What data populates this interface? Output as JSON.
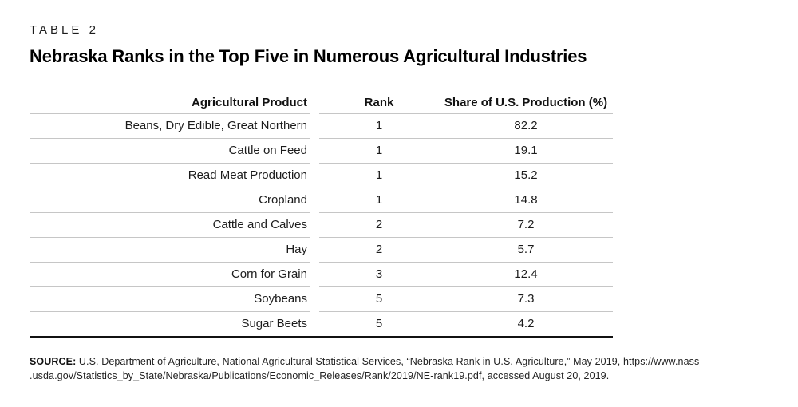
{
  "page": {
    "kicker": "TABLE 2",
    "title": "Nebraska Ranks in the Top Five in Numerous Agricultural Industries"
  },
  "table": {
    "columns": [
      "Agricultural Product",
      "Rank",
      "Share of U.S. Production (%)"
    ],
    "rows": [
      {
        "product": "Beans, Dry Edible, Great Northern",
        "rank": "1",
        "share": "82.2"
      },
      {
        "product": "Cattle on Feed",
        "rank": "1",
        "share": "19.1"
      },
      {
        "product": "Read Meat Production",
        "rank": "1",
        "share": "15.2"
      },
      {
        "product": "Cropland",
        "rank": "1",
        "share": "14.8"
      },
      {
        "product": "Cattle and Calves",
        "rank": "2",
        "share": "7.2"
      },
      {
        "product": "Hay",
        "rank": "2",
        "share": "5.7"
      },
      {
        "product": "Corn for Grain",
        "rank": "3",
        "share": "12.4"
      },
      {
        "product": "Soybeans",
        "rank": "5",
        "share": "7.3"
      },
      {
        "product": "Sugar Beets",
        "rank": "5",
        "share": "4.2"
      }
    ]
  },
  "source": {
    "label": "SOURCE:",
    "line1_rest": " U.S. Department of Agriculture, National Agricultural Statistical Services, “Nebraska Rank in U.S. Agriculture,” May 2019, https://www.nass",
    "line2": ".usda.gov/Statistics_by_State/Nebraska/Publications/Economic_Releases/Rank/2019/NE-rank19.pdf, accessed August 20, 2019."
  },
  "colors": {
    "row_rule": "#c6c6c6",
    "bottom_rule": "#111111",
    "text": "#1a1a1a",
    "background": "#ffffff"
  }
}
